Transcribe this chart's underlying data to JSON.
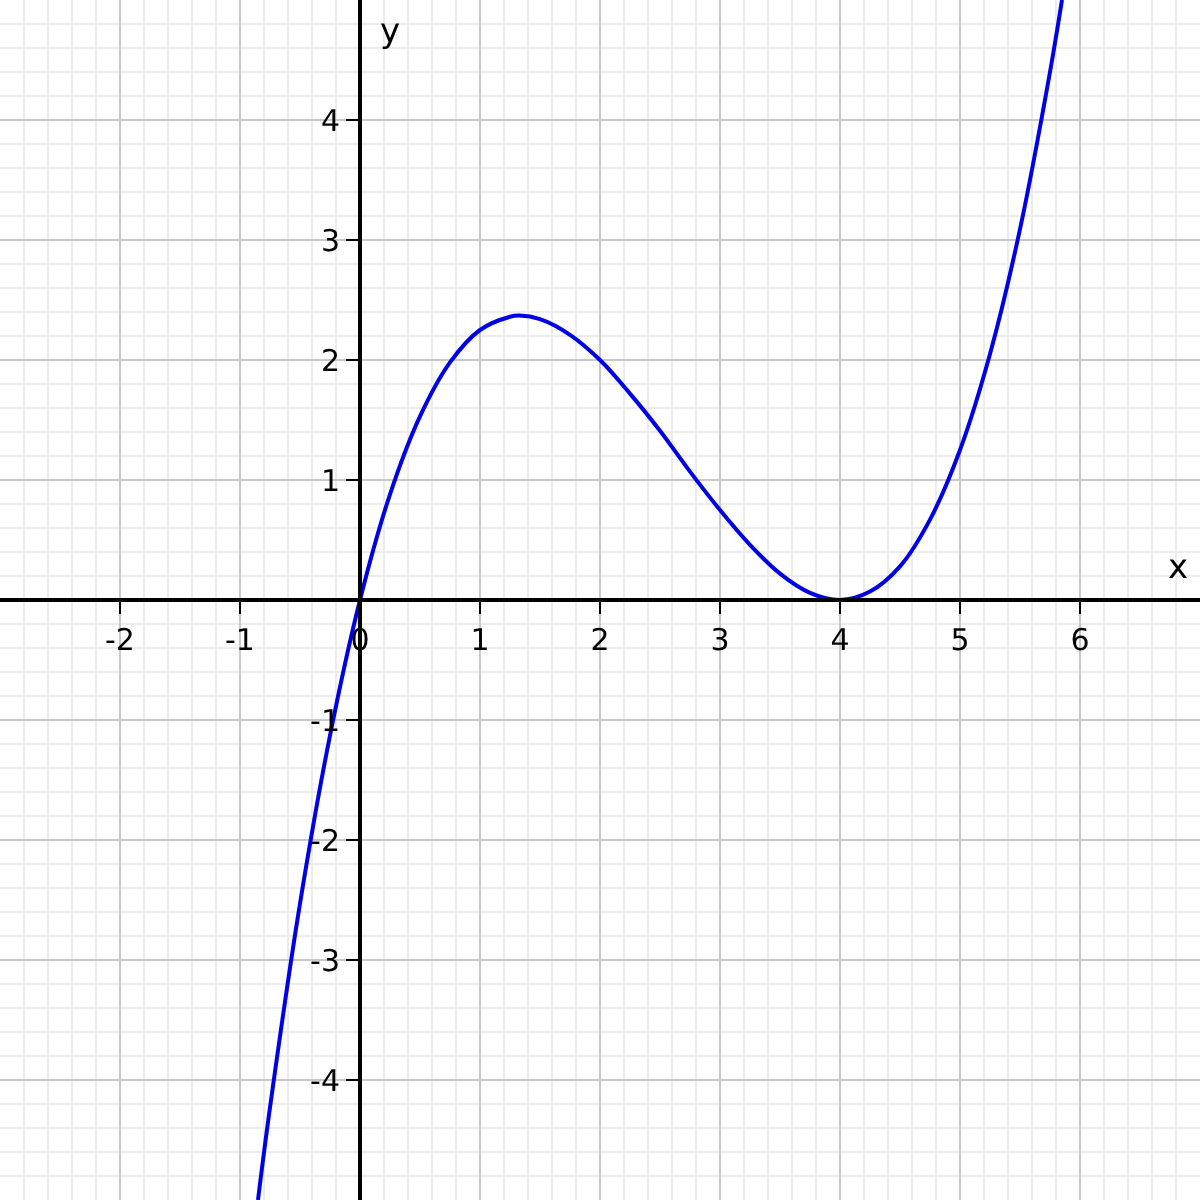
{
  "chart_data": {
    "type": "line",
    "xlabel": "x",
    "ylabel": "y",
    "x": [
      -0.85,
      -0.75,
      -0.5,
      -0.25,
      0,
      0.25,
      0.5,
      0.75,
      1,
      1.25,
      1.33,
      1.5,
      1.75,
      2,
      2.25,
      2.5,
      2.75,
      3,
      3.25,
      3.5,
      3.75,
      4,
      4.25,
      4.5,
      4.75,
      5,
      5.25,
      5.5,
      5.75,
      5.85
    ],
    "series": [
      {
        "color": "#0000e6",
        "values": [
          -5.0,
          -4.23,
          -2.53,
          -1.13,
          0,
          0.88,
          1.53,
          1.98,
          2.25,
          2.36,
          2.37,
          2.34,
          2.21,
          2.0,
          1.72,
          1.41,
          1.07,
          0.75,
          0.46,
          0.22,
          0.06,
          0,
          0.07,
          0.28,
          0.67,
          1.25,
          2.05,
          3.09,
          4.4,
          5.0
        ]
      }
    ],
    "xlim": [
      -3,
      7
    ],
    "ylim": [
      -5,
      5
    ],
    "xticks": [
      -2,
      -1,
      0,
      1,
      2,
      3,
      4,
      5,
      6
    ],
    "yticks": [
      -4,
      -3,
      -2,
      -1,
      1,
      2,
      3,
      4
    ],
    "grid": true,
    "legend": false,
    "marker": "none",
    "line_style": "solid"
  }
}
